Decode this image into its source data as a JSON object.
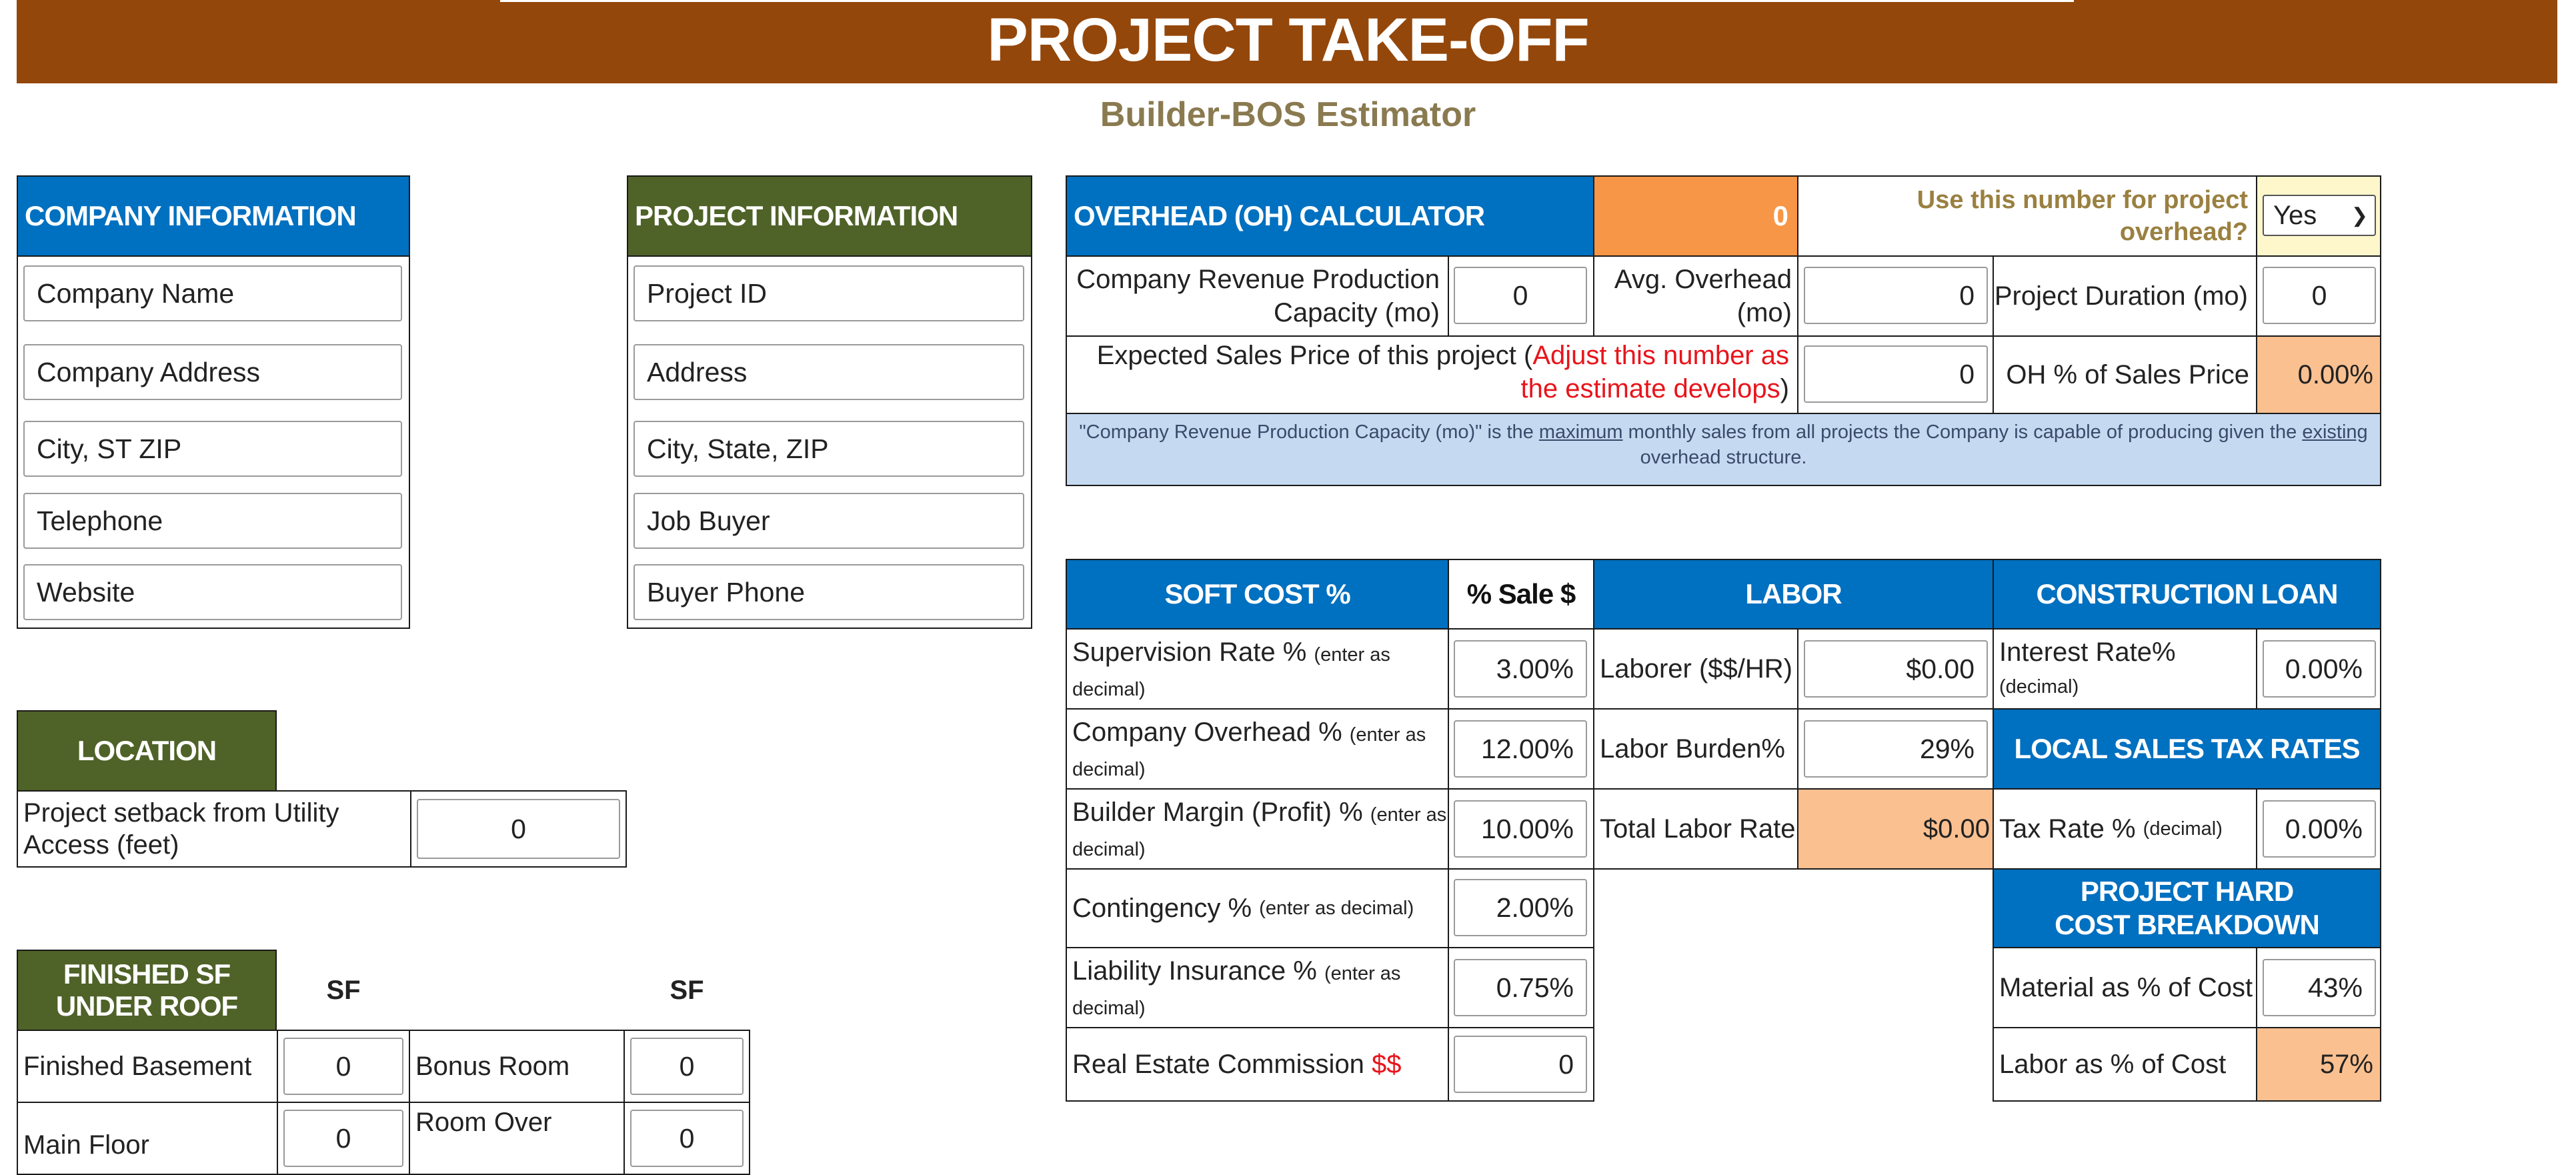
{
  "header": {
    "title": "PROJECT TAKE-OFF",
    "subtitle": "Builder-BOS Estimator"
  },
  "company": {
    "title": "COMPANY INFORMATION",
    "fields": [
      "Company Name",
      "Company Address",
      "City, ST ZIP",
      "Telephone",
      "Website"
    ]
  },
  "project": {
    "title": "PROJECT INFORMATION",
    "fields": [
      "Project ID",
      "Address",
      "City, State, ZIP",
      "Job Buyer",
      "Buyer Phone"
    ]
  },
  "overhead": {
    "title": "OVERHEAD (OH) CALCULATOR",
    "total": "0",
    "use_label": "Use this number for project overhead?",
    "use_value": "Yes",
    "revenue_label": "Company Revenue Production Capacity (mo)",
    "revenue_value": "0",
    "avg_label": "Avg. Overhead (mo)",
    "avg_value": "0",
    "duration_label": "Project Duration (mo)",
    "duration_value": "0",
    "sales_label": "Expected Sales Price of this project (",
    "sales_label_red": "Adjust this number as the estimate develops",
    "sales_label_end": ")",
    "sales_value": "0",
    "oh_pct_label": "OH % of Sales Price",
    "oh_pct_value": "0.00%",
    "note_1": "\"Company Revenue Production Capacity (mo)\" is the ",
    "note_u1": "maximum",
    "note_2": " monthly sales from all projects the Company is capable of producing given the ",
    "note_u2": "existing",
    "note_3": " overhead structure."
  },
  "soft_cost": {
    "title": "SOFT COST %",
    "col": "% Sale $",
    "rows": [
      {
        "label": "Supervision Rate % ",
        "hint": "(enter as decimal)",
        "value": "3.00%"
      },
      {
        "label": "Company Overhead % ",
        "hint": "(enter as decimal)",
        "value": "12.00%"
      },
      {
        "label": "Builder Margin (Profit) % ",
        "hint": "(enter as decimal)",
        "value": "10.00%"
      },
      {
        "label": "Contingency % ",
        "hint": "(enter as decimal)",
        "value": "2.00%"
      },
      {
        "label": "Liability Insurance % ",
        "hint": "(enter as decimal)",
        "value": "0.75%"
      },
      {
        "label": "Real Estate Commission ",
        "hint": "$$",
        "value": "0"
      }
    ]
  },
  "labor": {
    "title": "LABOR",
    "laborer_label": "Laborer ($$/HR)",
    "laborer_value": "$0.00",
    "burden_label": "Labor Burden%",
    "burden_value": "29%",
    "total_label": "Total Labor Rate",
    "total_value": "$0.00"
  },
  "loan": {
    "title": "CONSTRUCTION LOAN",
    "rate_label": "Interest Rate%",
    "rate_hint": "(decimal)",
    "rate_value": "0.00%"
  },
  "tax": {
    "title": "LOCAL SALES TAX RATES",
    "rate_label": "Tax Rate % ",
    "rate_hint": "(decimal)",
    "rate_value": "0.00%"
  },
  "hard_cost": {
    "title": "PROJECT HARD COST BREAKDOWN",
    "material_label": "Material as % of Cost",
    "material_value": "43%",
    "labor_label": "Labor as % of Cost",
    "labor_value": "57%"
  },
  "location": {
    "title": "LOCATION",
    "setback_label": "Project setback from Utility Access (feet)",
    "setback_value": "0"
  },
  "finished_sf": {
    "title": "FINISHED SF UNDER ROOF",
    "col1": "SF",
    "col2": "SF",
    "rows": [
      {
        "a_label": "Finished Basement",
        "a_value": "0",
        "b_label": "Bonus Room",
        "b_value": "0"
      },
      {
        "a_label": "Main Floor",
        "a_value": "0",
        "b_label": "Room Over",
        "b_value": "0"
      }
    ]
  },
  "colors": {
    "banner": "#94470a",
    "blue_header": "#0070c0",
    "olive_header": "#4f6228",
    "orange": "#f79646",
    "peach": "#fac090",
    "note_bg": "#c5d9f1"
  }
}
